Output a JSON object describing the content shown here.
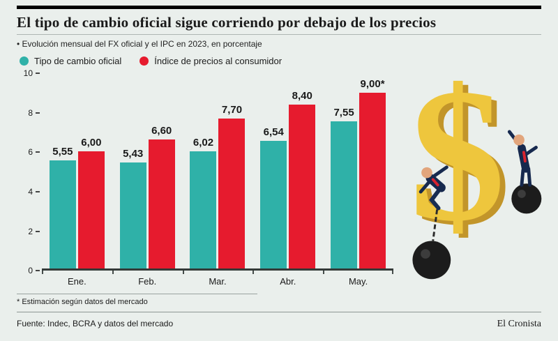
{
  "header": {
    "title": "El tipo de cambio oficial sigue corriendo por debajo de los precios",
    "subtitle": "• Evolución mensual del FX oficial y el IPC en 2023, en porcentaje"
  },
  "chart_data": {
    "type": "bar",
    "title": "El tipo de cambio oficial sigue corriendo por debajo de los precios",
    "subtitle": "Evolución mensual del FX oficial y el IPC en 2023, en porcentaje",
    "categories": [
      "Ene.",
      "Feb.",
      "Mar.",
      "Abr.",
      "May."
    ],
    "series": [
      {
        "name": "Tipo de cambio oficial",
        "color": "#2fb1a8",
        "values": [
          5.55,
          5.43,
          6.02,
          6.54,
          7.55
        ],
        "labels": [
          "5,55",
          "5,43",
          "6,02",
          "6,54",
          "7,55"
        ]
      },
      {
        "name": "Índice de precios al consumidor",
        "color": "#e61b2e",
        "values": [
          6.0,
          6.6,
          7.7,
          8.4,
          9.0
        ],
        "labels": [
          "6,00",
          "6,60",
          "7,70",
          "8,40",
          "9,00*"
        ]
      }
    ],
    "ylim": [
      0,
      10
    ],
    "yticks": [
      0,
      2,
      4,
      6,
      8,
      10
    ],
    "grid": false,
    "legend_position": "top-left"
  },
  "footnote": "* Estimación según datos del mercado",
  "footer": {
    "source": "Fuente: Indec, BCRA y datos del mercado",
    "brand": "El Cronista"
  },
  "illustration": {
    "description": "golden dollar sign with two businessmen climbing it, dragging ball-and-chain weights",
    "gold": "#eec63d",
    "gold_dark": "#c2952a",
    "suit": "#16294e",
    "tie": "#d8232f",
    "ball": "#1c1c1c"
  }
}
